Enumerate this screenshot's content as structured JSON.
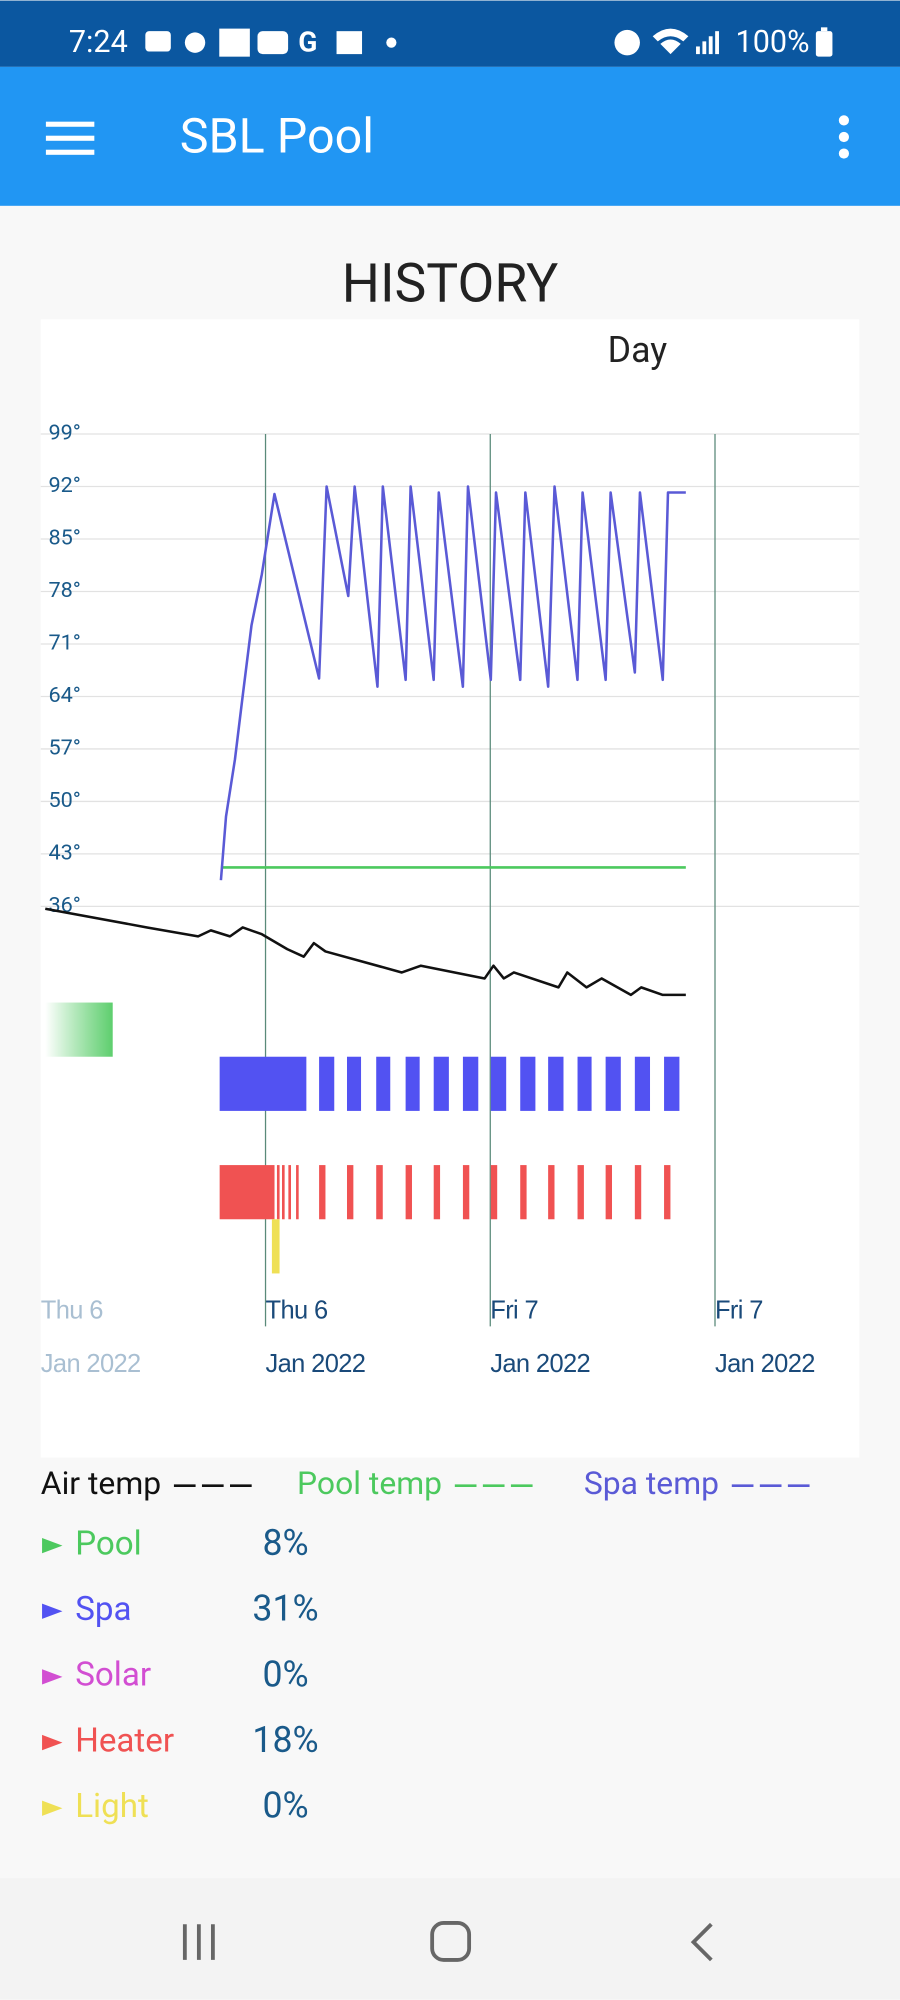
{
  "status_bar": {
    "time": "7:24",
    "battery": "100%"
  },
  "app_bar": {
    "title": "SBL Pool"
  },
  "chart_data": {
    "type": "line",
    "title": "HISTORY",
    "subtitle": "Day",
    "xlim": [
      0,
      43.7
    ],
    "xticks": [
      {
        "value": 0,
        "label": "Thu 6\nJan 2022"
      },
      {
        "value": 12,
        "label": "Thu 6\nJan 2022"
      },
      {
        "value": 24,
        "label": "Fri 7\nJan 2022"
      },
      {
        "value": 36,
        "label": "Fri 7\nJan 2022"
      }
    ],
    "ylim": [
      -20,
      99
    ],
    "yticks": [
      {
        "value": 99,
        "label": "99°"
      },
      {
        "value": 92,
        "label": "92°"
      },
      {
        "value": 85,
        "label": "85°"
      },
      {
        "value": 78,
        "label": "78°"
      },
      {
        "value": 71,
        "label": "71°"
      },
      {
        "value": 64,
        "label": "64°"
      },
      {
        "value": 57,
        "label": "57°"
      },
      {
        "value": 50,
        "label": "50°"
      },
      {
        "value": 43,
        "label": "43°"
      },
      {
        "value": 36,
        "label": "36°"
      }
    ],
    "grid": true,
    "series": [
      {
        "name": "Air temp",
        "color": "#111111",
        "x": [
          0.24,
          5.68,
          8.4,
          9.08,
          10.1,
          10.78,
          11.8,
          13.16,
          14.04,
          14.58,
          15.2,
          19.28,
          20.3,
          23.7,
          24.17,
          24.72,
          25.26,
          27.64,
          28.11,
          29.14,
          29.95,
          31.51,
          32.06,
          33.21,
          34.44
        ],
        "values": [
          35.7,
          33.2,
          32.0,
          32.8,
          32.0,
          33.2,
          32.3,
          30.3,
          29.3,
          31.1,
          30.0,
          27.2,
          28.1,
          26.4,
          28.1,
          26.4,
          27.2,
          25.2,
          27.2,
          25.2,
          26.4,
          24.2,
          25.2,
          24.2,
          24.2
        ]
      },
      {
        "name": "Pool temp",
        "color": "#4cc95e",
        "x": [
          9.62,
          34.44
        ],
        "values": [
          41.2,
          41.2
        ]
      },
      {
        "name": "Spa temp",
        "color": "#5a5ad6",
        "x": [
          9.62,
          9.89,
          10.37,
          10.78,
          11.25,
          11.8,
          12.48,
          14.86,
          15.26,
          16.42,
          16.76,
          17.98,
          18.26,
          19.48,
          19.75,
          20.98,
          21.25,
          22.54,
          22.81,
          24.03,
          24.31,
          25.6,
          25.87,
          27.09,
          27.43,
          28.66,
          28.93,
          30.16,
          30.43,
          31.72,
          31.99,
          33.21,
          33.49,
          34.44
        ],
        "values": [
          39.5,
          48.0,
          55.6,
          64.1,
          73.5,
          80.3,
          91.0,
          66.4,
          92.0,
          77.4,
          92.0,
          65.3,
          92.0,
          66.2,
          92.0,
          66.2,
          91.2,
          65.3,
          92.0,
          66.2,
          91.2,
          66.2,
          91.2,
          65.3,
          92.0,
          66.2,
          91.2,
          66.2,
          91.2,
          67.2,
          91.2,
          66.2,
          91.2,
          91.2
        ]
      }
    ]
  },
  "equipment": [
    {
      "name": "Pool",
      "color": "#4cc95e",
      "share": "8%",
      "intervals": [
        [
          0.24,
          3.84
        ]
      ]
    },
    {
      "name": "Spa",
      "color": "#5252f2",
      "share": "31%",
      "intervals": [
        [
          9.55,
          14.18
        ],
        [
          14.86,
          15.67
        ],
        [
          16.35,
          17.1
        ],
        [
          17.91,
          18.66
        ],
        [
          19.48,
          20.23
        ],
        [
          20.98,
          21.79
        ],
        [
          22.54,
          23.36
        ],
        [
          24.03,
          24.85
        ],
        [
          25.6,
          26.41
        ],
        [
          27.09,
          27.91
        ],
        [
          28.66,
          29.41
        ],
        [
          30.16,
          30.97
        ],
        [
          31.72,
          32.53
        ],
        [
          33.28,
          34.1
        ]
      ]
    },
    {
      "name": "Solar",
      "color": "#d24ed2",
      "share": "0%",
      "intervals": []
    },
    {
      "name": "Heater",
      "color": "#f05252",
      "share": "18%",
      "intervals": [
        [
          9.55,
          12.48
        ],
        [
          12.61,
          12.75
        ],
        [
          12.88,
          13.02
        ],
        [
          13.22,
          13.36
        ],
        [
          13.63,
          13.77
        ],
        [
          14.86,
          15.2
        ],
        [
          16.35,
          16.69
        ],
        [
          17.91,
          18.26
        ],
        [
          19.48,
          19.82
        ],
        [
          20.98,
          21.32
        ],
        [
          22.54,
          22.88
        ],
        [
          24.03,
          24.37
        ],
        [
          25.6,
          25.94
        ],
        [
          27.09,
          27.43
        ],
        [
          28.66,
          29.0
        ],
        [
          30.16,
          30.5
        ],
        [
          31.72,
          32.06
        ],
        [
          33.28,
          33.62
        ]
      ]
    },
    {
      "name": "Light",
      "color": "#efe055",
      "share": "0%",
      "intervals": [
        [
          12.34,
          12.75
        ]
      ]
    }
  ]
}
